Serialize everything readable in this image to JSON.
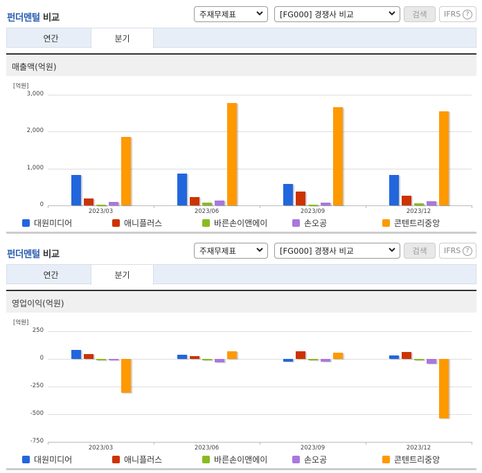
{
  "header": {
    "title_accent": "펀더멘털",
    "title_rest": " 비교",
    "select_1": "주재무제표",
    "select_2": "[FG000] 경쟁사 비교",
    "search_button": "검색",
    "ifrs_label": "IFRS",
    "help_icon": "?"
  },
  "tabs": [
    {
      "label": "연간",
      "active": false
    },
    {
      "label": "분기",
      "active": true
    }
  ],
  "series_colors": {
    "대원미디어": "#2266dd",
    "애니플러스": "#cc3300",
    "바른손이앤에이": "#88bb22",
    "손오공": "#aa77dd",
    "콘텐트리중앙": "#ff9900"
  },
  "legend": [
    "대원미디어",
    "애니플러스",
    "바른손이앤에이",
    "손오공",
    "콘텐트리중앙"
  ],
  "chart_data": [
    {
      "type": "bar",
      "title": "매출액(억원)",
      "unit_label": "[억원]",
      "categories": [
        "2023/03",
        "2023/06",
        "2023/09",
        "2023/12"
      ],
      "yticks": [
        "3,000",
        "2,000",
        "1,000",
        "0"
      ],
      "ylim": [
        0,
        3000
      ],
      "grid": true,
      "legend_position": "bottom",
      "series": [
        {
          "name": "대원미디어",
          "values": [
            830,
            870,
            590,
            830
          ]
        },
        {
          "name": "애니플러스",
          "values": [
            190,
            230,
            380,
            260
          ]
        },
        {
          "name": "바른손이앤에이",
          "values": [
            20,
            80,
            15,
            60
          ]
        },
        {
          "name": "손오공",
          "values": [
            100,
            130,
            80,
            120
          ]
        },
        {
          "name": "콘텐트리중앙",
          "values": [
            1860,
            2780,
            2660,
            2550
          ]
        }
      ]
    },
    {
      "type": "bar",
      "title": "영업이익(억원)",
      "unit_label": "[억원]",
      "categories": [
        "2023/03",
        "2023/06",
        "2023/09",
        "2023/12"
      ],
      "yticks": [
        "250",
        "0",
        "-250",
        "-500",
        "-750"
      ],
      "ylim": [
        -750,
        250
      ],
      "grid": true,
      "legend_position": "bottom",
      "series": [
        {
          "name": "대원미디어",
          "values": [
            80,
            40,
            -25,
            30
          ]
        },
        {
          "name": "애니플러스",
          "values": [
            45,
            25,
            70,
            65
          ]
        },
        {
          "name": "바른손이앤에이",
          "values": [
            -15,
            -15,
            -15,
            -15
          ]
        },
        {
          "name": "손오공",
          "values": [
            -15,
            -30,
            -25,
            -45
          ]
        },
        {
          "name": "콘텐트리중앙",
          "values": [
            -305,
            70,
            55,
            -535
          ]
        }
      ]
    }
  ]
}
